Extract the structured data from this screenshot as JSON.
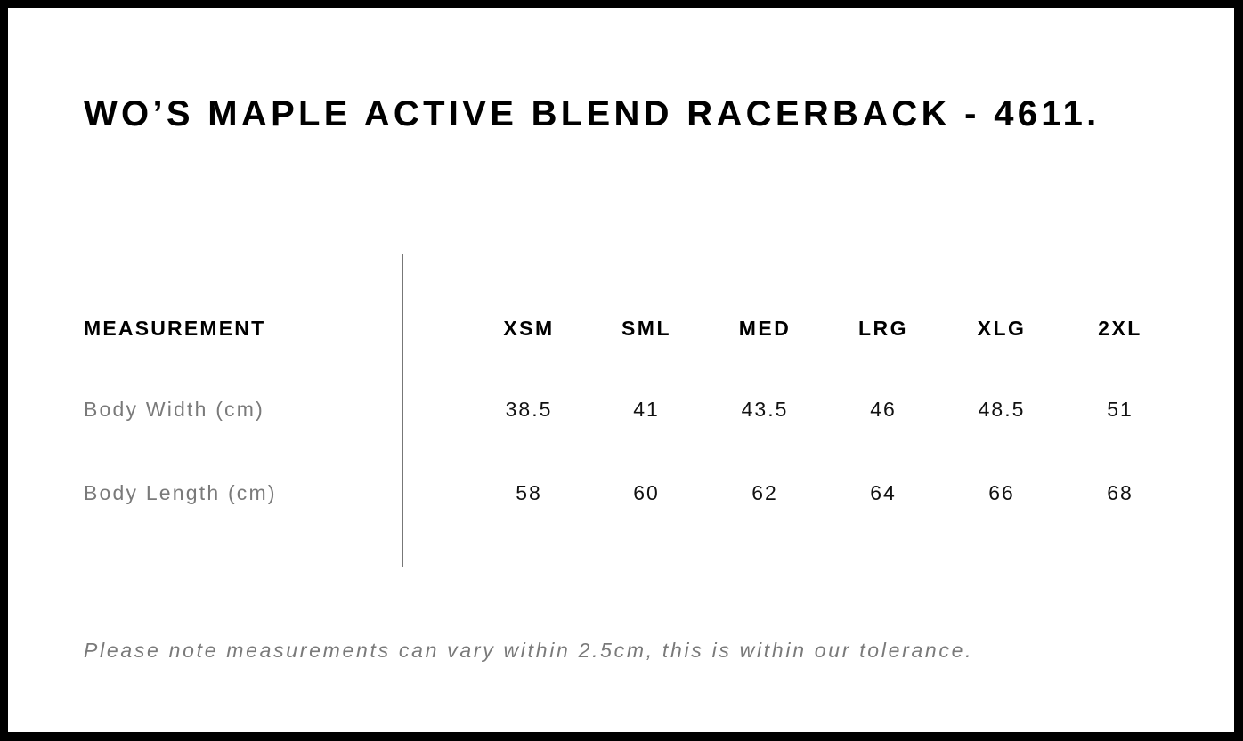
{
  "title": "WO’S MAPLE ACTIVE BLEND RACERBACK - 4611.",
  "table": {
    "header_label": "MEASUREMENT",
    "sizes": [
      "XSM",
      "SML",
      "MED",
      "LRG",
      "XLG",
      "2XL"
    ],
    "rows": [
      {
        "label": "Body Width (cm)",
        "values": [
          "38.5",
          "41",
          "43.5",
          "46",
          "48.5",
          "51"
        ]
      },
      {
        "label": "Body Length (cm)",
        "values": [
          "58",
          "60",
          "62",
          "64",
          "66",
          "68"
        ]
      }
    ]
  },
  "note": "Please note measurements can vary within 2.5cm, this is within our tolerance."
}
